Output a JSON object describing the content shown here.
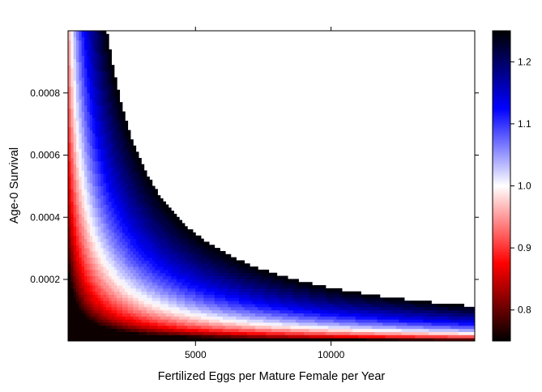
{
  "chart_data": {
    "type": "heatmap",
    "title": "",
    "xlabel": "Fertilized Eggs per Mature Female per Year",
    "ylabel": "Age-0 Survival",
    "xlim": [
      300,
      15300
    ],
    "ylim": [
      2e-06,
      0.001
    ],
    "x_ticks": [
      5000,
      10000
    ],
    "x_tick_labels": [
      "5000",
      "10000"
    ],
    "y_ticks": [
      0.0002,
      0.0004,
      0.0006,
      0.0008
    ],
    "y_tick_labels": [
      "0.0002",
      "0.0004",
      "0.0006",
      "0.0008"
    ],
    "value_description": "population growth rate (lambda) as a function of fecundity and age-0 survival; cells above the color scale maximum are left blank",
    "value_model": "lambda ≈ (fecundity × age-0 survival / 0.43)^0.16",
    "colorbar": {
      "range": [
        0.75,
        1.25
      ],
      "ticks": [
        0.8,
        0.9,
        1.0,
        1.1,
        1.2
      ],
      "tick_labels": [
        "0.8",
        "0.9",
        "1.0",
        "1.1",
        "1.2"
      ],
      "colors": [
        "#000000",
        "#ff0000",
        "#ffffff",
        "#0000ff",
        "#000000"
      ],
      "color_stops": [
        0.75,
        0.875,
        1.0,
        1.125,
        1.25
      ]
    },
    "grid": false,
    "legend": "right"
  }
}
